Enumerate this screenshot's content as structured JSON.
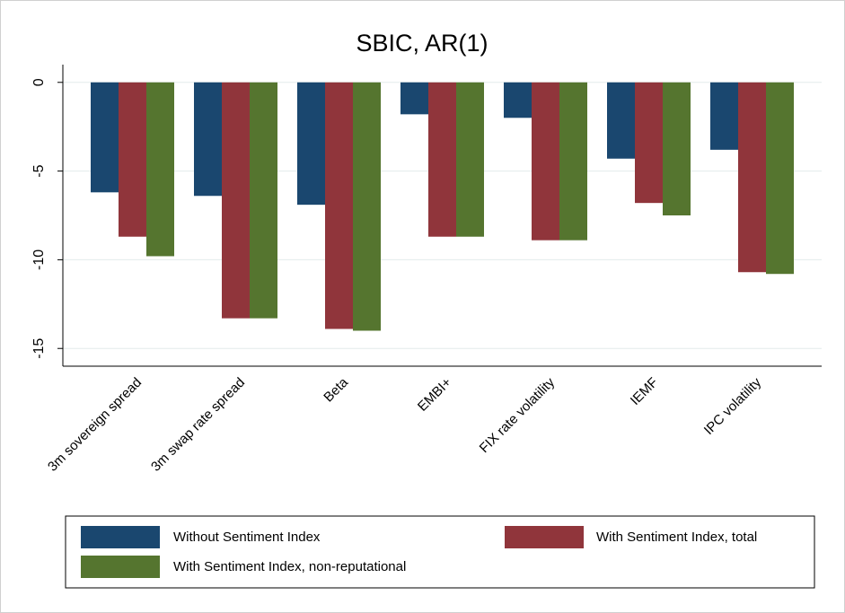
{
  "chart_data": {
    "type": "bar",
    "title": "SBIC, AR(1)",
    "categories": [
      "3m sovereign spread",
      "3m swap rate spread",
      "Beta",
      "EMBI+",
      "FIX rate volatility",
      "IEMF",
      "IPC volatility"
    ],
    "series": [
      {
        "name": "Without Sentiment Index",
        "color": "#1a476f",
        "values": [
          -6.2,
          -6.4,
          -6.9,
          -1.8,
          -2.0,
          -4.3,
          -3.8
        ]
      },
      {
        "name": "With Sentiment Index, total",
        "color": "#90353b",
        "values": [
          -8.7,
          -13.3,
          -13.9,
          -8.7,
          -8.9,
          -6.8,
          -10.7
        ]
      },
      {
        "name": "With Sentiment Index, non-reputational",
        "color": "#55752f",
        "values": [
          -9.8,
          -13.3,
          -14.0,
          -8.7,
          -8.9,
          -7.5,
          -10.8
        ]
      }
    ],
    "ylim": [
      -16,
      1
    ],
    "yticks": [
      0,
      -5,
      -10,
      -15
    ],
    "grid": true
  }
}
